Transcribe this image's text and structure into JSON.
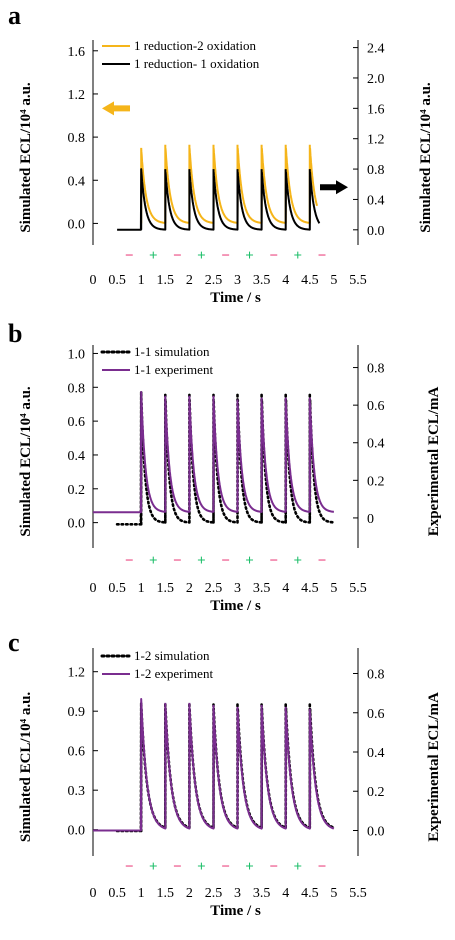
{
  "colors": {
    "orange": "#f5b51a",
    "black": "#000000",
    "purple": "#7a2d8f",
    "minus": "#ea3d7a",
    "plus": "#1fbf6b"
  },
  "pulse_marks": [
    "−",
    "+",
    "−",
    "+",
    "−",
    "+",
    "−",
    "+",
    "−"
  ],
  "chart_data": [
    {
      "panel": "a",
      "type": "line",
      "xlabel": "Time / s",
      "ylabel": "Simulated ECL/10⁴ a.u.",
      "ylabel_right": "Simulated ECL/10⁴ a.u.",
      "xlim": [
        0,
        5.5
      ],
      "xticks": [
        "0",
        "0.5",
        "1",
        "1.5",
        "2",
        "2.5",
        "3",
        "3.5",
        "4",
        "4.5",
        "5",
        "5.5"
      ],
      "ylim_left": [
        -0.2,
        1.7
      ],
      "yticks_left": [
        "0.0",
        "0.4",
        "0.8",
        "1.2",
        "1.6"
      ],
      "yticks_left_values": [
        0,
        0.4,
        0.8,
        1.2,
        1.6
      ],
      "ylim_right": [
        -0.2,
        2.5
      ],
      "yticks_right": [
        "0.0",
        "0.4",
        "0.8",
        "1.2",
        "1.6",
        "2.0",
        "2.4"
      ],
      "yticks_right_values": [
        0,
        0.4,
        0.8,
        1.2,
        1.6,
        2.0,
        2.4
      ],
      "series": [
        {
          "name": "1 reduction-2 oxidation",
          "color": "orange",
          "axis": "left",
          "style": "solid",
          "baseline": 0,
          "pre_level": 0,
          "start": 1.0,
          "end": 4.65,
          "peaks": [
            [
              1.0,
              0.7
            ],
            [
              1.5,
              0.73
            ],
            [
              2.0,
              0.73
            ],
            [
              2.5,
              0.73
            ],
            [
              3.0,
              0.73
            ],
            [
              3.5,
              0.73
            ],
            [
              4.0,
              0.73
            ],
            [
              4.5,
              0.73
            ]
          ],
          "tau": 0.1
        },
        {
          "name": "1 reduction- 1 oxidation",
          "color": "black",
          "axis": "right",
          "style": "solid",
          "baseline": 0,
          "pre_level": 0,
          "start": 0.5,
          "end": 4.7,
          "peaks": [
            [
              1.0,
              0.8
            ],
            [
              1.5,
              0.8
            ],
            [
              2.0,
              0.8
            ],
            [
              2.5,
              0.8
            ],
            [
              3.0,
              0.8
            ],
            [
              3.5,
              0.8
            ],
            [
              4.0,
              0.8
            ],
            [
              4.5,
              0.8
            ]
          ],
          "tau": 0.09
        }
      ],
      "legend_position": "top-left",
      "arrows": [
        {
          "direction": "left",
          "color": "orange",
          "at_right_value": 1.6
        },
        {
          "direction": "right",
          "color": "black",
          "at_right_value": 0.56
        }
      ]
    },
    {
      "panel": "b",
      "type": "line",
      "xlabel": "Time / s",
      "ylabel": "Simulated ECL/10⁴ a.u.",
      "ylabel_right": "Experimental ECL/mA",
      "xlim": [
        0,
        5.5
      ],
      "xticks": [
        "0",
        "0.5",
        "1",
        "1.5",
        "2",
        "2.5",
        "3",
        "3.5",
        "4",
        "4.5",
        "5",
        "5.5"
      ],
      "ylim_left": [
        -0.15,
        1.05
      ],
      "yticks_left": [
        "0.0",
        "0.2",
        "0.4",
        "0.6",
        "0.8",
        "1.0"
      ],
      "yticks_left_values": [
        0,
        0.2,
        0.4,
        0.6,
        0.8,
        1.0
      ],
      "ylim_right": [
        -0.16,
        0.92
      ],
      "yticks_right": [
        "0",
        "0.2",
        "0.4",
        "0.6",
        "0.8"
      ],
      "yticks_right_values": [
        0,
        0.2,
        0.4,
        0.6,
        0.8
      ],
      "series": [
        {
          "name": "1-1 simulation",
          "color": "black",
          "axis": "left",
          "style": "dotted",
          "baseline": 0,
          "pre_level": -0.01,
          "start": 0.5,
          "end": 5.0,
          "peaks": [
            [
              1.0,
              0.77
            ],
            [
              1.5,
              0.77
            ],
            [
              2.0,
              0.77
            ],
            [
              2.5,
              0.77
            ],
            [
              3.0,
              0.77
            ],
            [
              3.5,
              0.77
            ],
            [
              4.0,
              0.77
            ],
            [
              4.5,
              0.77
            ]
          ],
          "tau": 0.08
        },
        {
          "name": "1-1 experiment",
          "color": "purple",
          "axis": "right",
          "style": "solid",
          "baseline": 0.03,
          "pre_level": 0.03,
          "start": 0.0,
          "end": 5.0,
          "peaks": [
            [
              1.0,
              0.67
            ],
            [
              1.5,
              0.65
            ],
            [
              2.0,
              0.65
            ],
            [
              2.5,
              0.65
            ],
            [
              3.0,
              0.63
            ],
            [
              3.5,
              0.64
            ],
            [
              4.0,
              0.64
            ],
            [
              4.5,
              0.64
            ]
          ],
          "tau": 0.09
        }
      ],
      "legend_position": "top-left"
    },
    {
      "panel": "c",
      "type": "line",
      "xlabel": "Time / s",
      "ylabel": "Simulated ECL/10⁴ a.u.",
      "ylabel_right": "Experimental ECL/mA",
      "xlim": [
        0,
        5.5
      ],
      "xticks": [
        "0",
        "0.5",
        "1",
        "1.5",
        "2",
        "2.5",
        "3",
        "3.5",
        "4",
        "4.5",
        "5",
        "5.5"
      ],
      "ylim_left": [
        -0.2,
        1.38
      ],
      "yticks_left": [
        "0.0",
        "0.3",
        "0.6",
        "0.9",
        "1.2"
      ],
      "yticks_left_values": [
        0,
        0.3,
        0.6,
        0.9,
        1.2
      ],
      "ylim_right": [
        -0.13,
        0.93
      ],
      "yticks_right": [
        "0.0",
        "0.2",
        "0.4",
        "0.6",
        "0.8"
      ],
      "yticks_right_values": [
        0,
        0.2,
        0.4,
        0.6,
        0.8
      ],
      "series": [
        {
          "name": "1-2 simulation",
          "color": "black",
          "axis": "left",
          "style": "dotted",
          "baseline": 0,
          "pre_level": -0.01,
          "start": 0.5,
          "end": 5.0,
          "peaks": [
            [
              1.0,
              0.96
            ],
            [
              1.5,
              0.96
            ],
            [
              2.0,
              0.96
            ],
            [
              2.5,
              0.96
            ],
            [
              3.0,
              0.96
            ],
            [
              3.5,
              0.96
            ],
            [
              4.0,
              0.96
            ],
            [
              4.5,
              0.96
            ]
          ],
          "tau": 0.12
        },
        {
          "name": "1-2 experiment",
          "color": "purple",
          "axis": "right",
          "style": "solid",
          "baseline": 0,
          "pre_level": 0,
          "start": 0.0,
          "end": 5.0,
          "peaks": [
            [
              1.0,
              0.67
            ],
            [
              1.5,
              0.65
            ],
            [
              2.0,
              0.65
            ],
            [
              2.5,
              0.64
            ],
            [
              3.0,
              0.63
            ],
            [
              3.5,
              0.64
            ],
            [
              4.0,
              0.63
            ],
            [
              4.5,
              0.62
            ]
          ],
          "tau": 0.12
        }
      ],
      "legend_position": "top-left"
    }
  ]
}
